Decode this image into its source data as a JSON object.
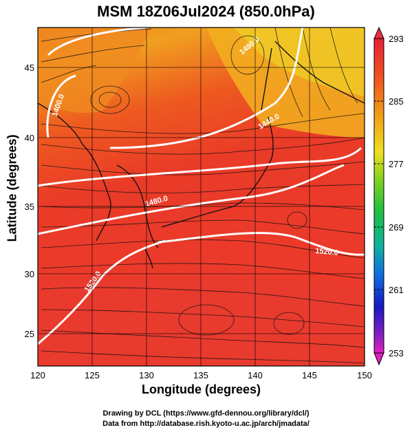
{
  "title": "MSM 18Z06Jul2024 (850.0hPa)",
  "xlabel": "Longitude (degrees)",
  "ylabel": "Latitude  (degrees)",
  "credits": [
    "Drawing by DCL (https://www.gfd-dennou.org/library/dcl/)",
    "Data from http://database.rish.kyoto-u.ac.jp/arch/jmadata/"
  ],
  "map": {
    "lon_range": [
      120,
      150
    ],
    "lat_range": [
      22.5,
      47.6
    ],
    "lon_ticks": [
      "120",
      "125",
      "130",
      "135",
      "140",
      "145",
      "150"
    ],
    "lat_ticks": [
      "25",
      "30",
      "35",
      "40",
      "45"
    ],
    "field": "temperature (K) shaded, wind streamlines, geopotential height contours"
  },
  "colorbar": {
    "labels": [
      "293",
      "285",
      "277",
      "269",
      "261",
      "253"
    ],
    "min": 253,
    "max": 293
  },
  "contours": [
    {
      "label": "1400.0"
    },
    {
      "label": "1480.0"
    },
    {
      "label": "1440.0"
    },
    {
      "label": "1480.0"
    },
    {
      "label": "1520.0"
    },
    {
      "label": "1520.0"
    }
  ],
  "colors": {
    "warm_red": "#ee3a2a",
    "orange": "#f06a1a",
    "yellow": "#f0c020",
    "contour": "#ffffff"
  }
}
